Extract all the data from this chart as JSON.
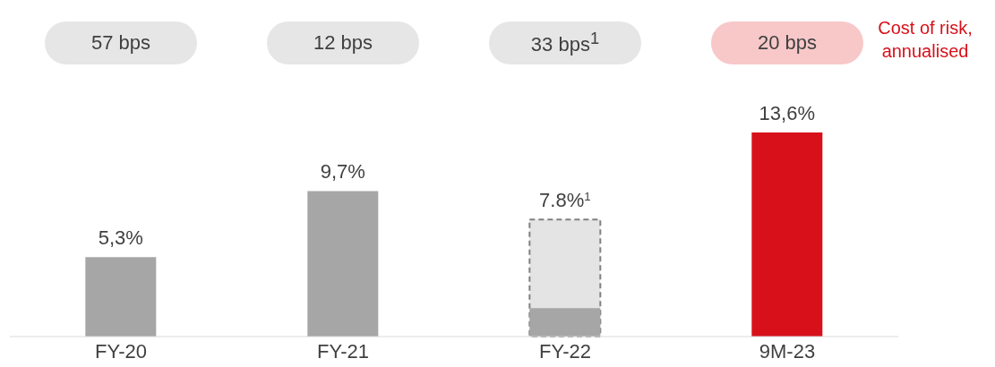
{
  "chart_data": {
    "type": "bar",
    "categories": [
      "FY-20",
      "FY-21",
      "FY-22",
      "9M-23"
    ],
    "series": [
      {
        "colors": [
          "#a6a6a6",
          "#a6a6a6",
          "#a6a6a6",
          "#d7101a"
        ],
        "values": [
          5.3,
          9.7,
          1.9,
          13.6
        ],
        "value_labels": [
          "5,3%",
          "9,7%",
          null,
          "13,6%"
        ]
      },
      {
        "color": "#e4e4e4",
        "line_style": "dashed",
        "values": [
          null,
          null,
          7.8,
          null
        ],
        "value_labels": [
          null,
          null,
          "7.8%$^{1}$",
          null
        ]
      }
    ],
    "annotations": [
      "57 bps",
      "12 bps",
      "33 bps$^{1}$",
      "20 bps",
      "Cost of risk, annualised"
    ]
  }
}
